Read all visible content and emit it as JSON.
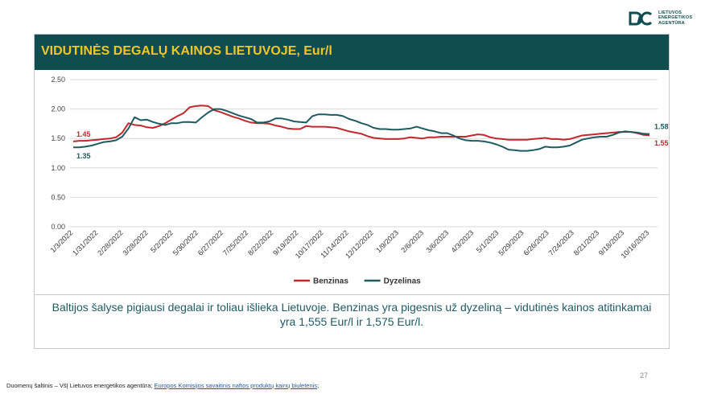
{
  "logo": {
    "lines": [
      "LIETUVOS",
      "ENERGETIKOS",
      "AGENTŪRA"
    ]
  },
  "header": {
    "title": "VIDUTINĖS DEGALŲ KAINOS LIETUVOJE, Eur/l"
  },
  "note": "Baltijos šalyse pigiausi degalai ir toliau išlieka Lietuvoje. Benzinas yra pigesnis už dyzeliną – vidutinės kainos atitinkamai yra 1,555 Eur/l ir 1,575 Eur/l.",
  "source": {
    "prefix": "Duomenų šaltinis – VšĮ Lietuvos energetikos agentūra;",
    "link": "Europos Komisijos savaitinis naftos produktų kainų biuletenis",
    "suffix": ";"
  },
  "page_number": "27",
  "colors": {
    "header_bg": "#0f4d51",
    "title": "#f3c623",
    "benzinas": "#c1272d",
    "dyzelinas": "#1f5a60"
  },
  "chart_data": {
    "type": "line",
    "x_tick_labels": [
      "1/3/2022",
      "1/31/2022",
      "2/28/2022",
      "3/28/2022",
      "5/2/2022",
      "5/30/2022",
      "6/27/2022",
      "7/25/2022",
      "8/22/2022",
      "9/19/2022",
      "10/17/2022",
      "11/14/2022",
      "12/12/2022",
      "1/9/2023",
      "2/6/2023",
      "3/6/2023",
      "4/3/2023",
      "5/1/2023",
      "5/29/2023",
      "6/26/2023",
      "7/24/2023",
      "8/21/2023",
      "9/18/2023",
      "10/16/2023"
    ],
    "y_ticks": [
      "0.00",
      "0.50",
      "1.00",
      "1.50",
      "2.00",
      "2.50"
    ],
    "ylim": [
      0,
      2.5
    ],
    "grid": true,
    "legend_position": "bottom",
    "series": [
      {
        "name": "Benzinas",
        "color": "#c1272d",
        "values": [
          1.45,
          1.46,
          1.46,
          1.47,
          1.48,
          1.49,
          1.5,
          1.52,
          1.6,
          1.76,
          1.73,
          1.72,
          1.69,
          1.68,
          1.71,
          1.76,
          1.82,
          1.88,
          1.93,
          2.03,
          2.05,
          2.06,
          2.05,
          1.98,
          1.95,
          1.91,
          1.87,
          1.84,
          1.8,
          1.77,
          1.76,
          1.76,
          1.75,
          1.72,
          1.7,
          1.67,
          1.66,
          1.66,
          1.71,
          1.7,
          1.7,
          1.7,
          1.69,
          1.68,
          1.65,
          1.62,
          1.6,
          1.58,
          1.54,
          1.51,
          1.5,
          1.49,
          1.49,
          1.49,
          1.5,
          1.52,
          1.51,
          1.5,
          1.52,
          1.52,
          1.53,
          1.53,
          1.53,
          1.53,
          1.53,
          1.55,
          1.57,
          1.56,
          1.52,
          1.5,
          1.49,
          1.48,
          1.48,
          1.48,
          1.48,
          1.49,
          1.5,
          1.51,
          1.49,
          1.49,
          1.48,
          1.49,
          1.52,
          1.55,
          1.56,
          1.57,
          1.58,
          1.59,
          1.6,
          1.61,
          1.61,
          1.61,
          1.59,
          1.56,
          1.555
        ],
        "start_label": "1.45",
        "end_label": "1.55"
      },
      {
        "name": "Dyzelinas",
        "color": "#1f5a60",
        "values": [
          1.35,
          1.35,
          1.36,
          1.38,
          1.41,
          1.44,
          1.45,
          1.47,
          1.53,
          1.67,
          1.86,
          1.81,
          1.82,
          1.78,
          1.75,
          1.73,
          1.76,
          1.76,
          1.78,
          1.78,
          1.77,
          1.86,
          1.94,
          2.0,
          2.0,
          1.97,
          1.93,
          1.89,
          1.86,
          1.83,
          1.77,
          1.77,
          1.79,
          1.84,
          1.84,
          1.82,
          1.79,
          1.78,
          1.77,
          1.88,
          1.91,
          1.91,
          1.9,
          1.9,
          1.88,
          1.83,
          1.8,
          1.76,
          1.73,
          1.68,
          1.66,
          1.66,
          1.65,
          1.65,
          1.66,
          1.67,
          1.7,
          1.67,
          1.64,
          1.62,
          1.59,
          1.59,
          1.55,
          1.5,
          1.47,
          1.46,
          1.46,
          1.45,
          1.43,
          1.4,
          1.36,
          1.31,
          1.3,
          1.29,
          1.29,
          1.3,
          1.32,
          1.36,
          1.35,
          1.35,
          1.36,
          1.38,
          1.43,
          1.48,
          1.5,
          1.52,
          1.53,
          1.53,
          1.56,
          1.6,
          1.62,
          1.61,
          1.6,
          1.58,
          1.575
        ],
        "start_label": "1.35",
        "end_label": "1.58"
      }
    ]
  }
}
